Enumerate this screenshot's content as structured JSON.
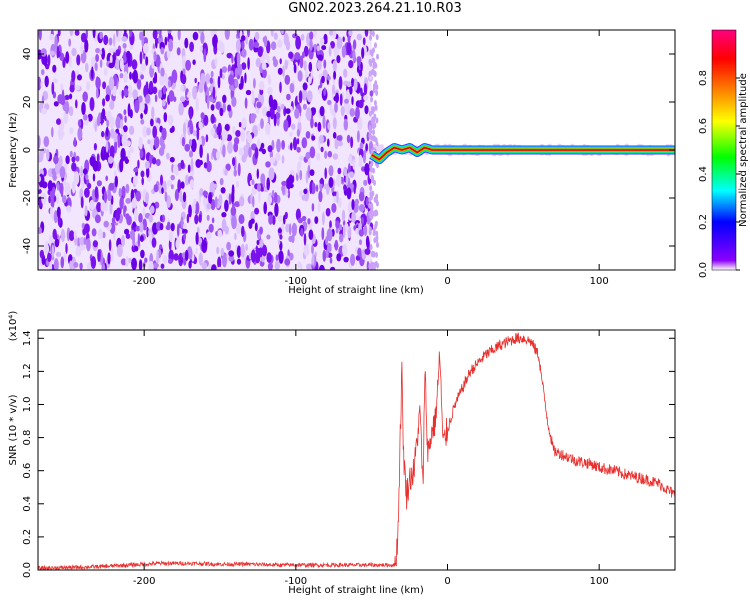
{
  "title": "GN02.2023.264.21.10.R03",
  "colors": {
    "snr_line": "#e8302e",
    "noise_fill": "#7a12ee",
    "signal_ridge": "#d20000",
    "axis": "#000000"
  },
  "chart_data": [
    {
      "type": "heatmap",
      "xlabel": "Height of straight line (km)",
      "ylabel": "Frequency (Hz)",
      "xlim": [
        -270,
        150
      ],
      "ylim": [
        -50,
        50
      ],
      "x_ticks": [
        -200,
        -100,
        0,
        100
      ],
      "y_ticks": [
        -40,
        -20,
        0,
        20,
        40
      ],
      "colorbar": {
        "label": "Normalized spectral amplitude",
        "range": [
          0.0,
          1.0
        ],
        "ticks": [
          "0.0",
          "0.2",
          "0.4",
          "0.6",
          "0.8"
        ],
        "colormap": [
          "#ffffff",
          "#8b00ff",
          "#0000ff",
          "#00ffff",
          "#00ff00",
          "#ffff00",
          "#ff8000",
          "#ff0000",
          "#ff0080"
        ]
      },
      "noise_region": {
        "x_range": [
          -270,
          -50
        ],
        "freq_range": [
          -50,
          50
        ]
      },
      "signal_ridge": {
        "x": [
          -50,
          -45,
          -40,
          -35,
          -30,
          -25,
          -20,
          -15,
          -10,
          -5,
          0,
          50,
          100,
          150
        ],
        "freq": [
          -2,
          -4,
          -1,
          1,
          0,
          1,
          -1,
          1,
          0,
          0,
          0,
          0,
          0,
          0
        ]
      },
      "grid": false
    },
    {
      "type": "line",
      "xlabel": "Height of straight line (km)",
      "ylabel": "SNR (10 * v/v)",
      "multiplier_label": "(x10⁴)",
      "xlim": [
        -270,
        150
      ],
      "ylim": [
        0,
        1.45
      ],
      "x_ticks": [
        -200,
        -100,
        0,
        100
      ],
      "y_ticks": [
        "0.0",
        "0.2",
        "0.4",
        "0.6",
        "0.8",
        "1.0",
        "1.2",
        "1.4"
      ],
      "series": [
        {
          "x": [
            -270,
            -250,
            -230,
            -210,
            -190,
            -170,
            -150,
            -130,
            -110,
            -90,
            -70,
            -50,
            -35,
            -33,
            -32,
            -31,
            -30,
            -29,
            -27,
            -25,
            -22,
            -20,
            -18,
            -16,
            -15,
            -13,
            -10,
            -8,
            -5,
            -3,
            0,
            5,
            10,
            15,
            20,
            25,
            30,
            35,
            40,
            45,
            50,
            55,
            60,
            63,
            66,
            70,
            75,
            80,
            85,
            90,
            95,
            100,
            110,
            120,
            130,
            140,
            150
          ],
          "y": [
            0.01,
            0.015,
            0.02,
            0.03,
            0.04,
            0.04,
            0.035,
            0.035,
            0.03,
            0.03,
            0.03,
            0.03,
            0.03,
            0.15,
            0.45,
            0.9,
            1.2,
            0.7,
            0.45,
            0.55,
            0.6,
            0.8,
            0.95,
            0.45,
            1.25,
            0.7,
            0.85,
            0.9,
            1.3,
            0.75,
            0.85,
            1.0,
            1.1,
            1.2,
            1.25,
            1.3,
            1.33,
            1.36,
            1.38,
            1.4,
            1.4,
            1.38,
            1.3,
            1.1,
            0.9,
            0.72,
            0.7,
            0.68,
            0.66,
            0.65,
            0.64,
            0.62,
            0.6,
            0.57,
            0.55,
            0.52,
            0.45
          ]
        }
      ]
    }
  ]
}
